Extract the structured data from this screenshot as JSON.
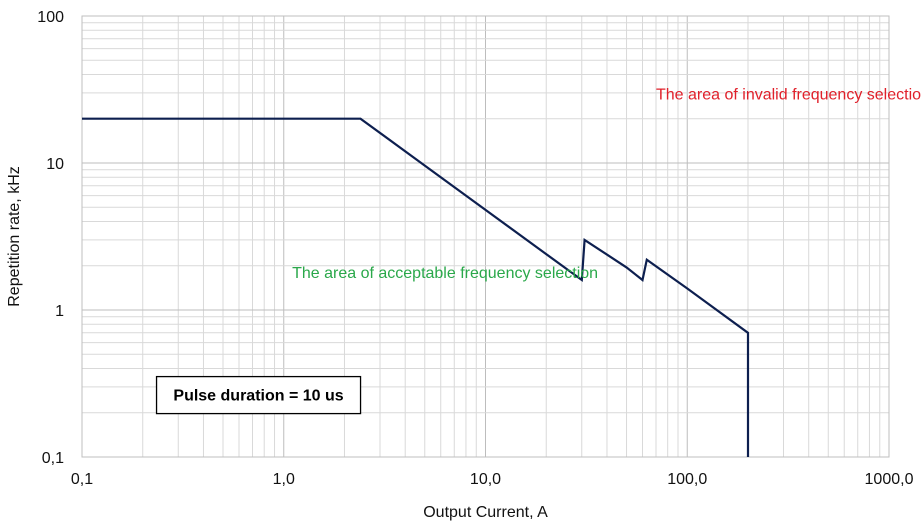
{
  "chart_data": {
    "type": "line",
    "x_scale": "log",
    "y_scale": "log",
    "xlim": [
      0.1,
      1000
    ],
    "ylim": [
      0.1,
      100
    ],
    "grid": true,
    "xlabel": "Output Current, A",
    "ylabel": "Repetition rate, kHz",
    "x_ticks": [
      {
        "value": 0.1,
        "label": "0,1"
      },
      {
        "value": 1,
        "label": "1,0"
      },
      {
        "value": 10,
        "label": "10,0"
      },
      {
        "value": 100,
        "label": "100,0"
      },
      {
        "value": 1000,
        "label": "1000,0"
      }
    ],
    "y_ticks": [
      {
        "value": 0.1,
        "label": "0,1"
      },
      {
        "value": 1,
        "label": "1"
      },
      {
        "value": 10,
        "label": "10"
      },
      {
        "value": 100,
        "label": "100"
      }
    ],
    "series": [
      {
        "color": "#0d1f4f",
        "points": [
          [
            0.1,
            20
          ],
          [
            2.4,
            20
          ],
          [
            5,
            9.6
          ],
          [
            10,
            4.8
          ],
          [
            20,
            2.4
          ],
          [
            30,
            1.6
          ],
          [
            31,
            3.0
          ],
          [
            50,
            1.95
          ],
          [
            60,
            1.6
          ],
          [
            63,
            2.2
          ],
          [
            100,
            1.4
          ],
          [
            200,
            0.7
          ],
          [
            200,
            0.1
          ]
        ]
      }
    ],
    "annotations": [
      {
        "text": "The area of invalid frequency selection",
        "x": 70,
        "y": 27,
        "color": "#e0202a"
      },
      {
        "text": "The area of acceptable frequency selection",
        "x": 1.1,
        "y": 1.65,
        "color": "#2aa84a"
      }
    ],
    "note_box": {
      "text": "Pulse duration = 10 us",
      "x": 0.75,
      "y": 0.27
    }
  }
}
